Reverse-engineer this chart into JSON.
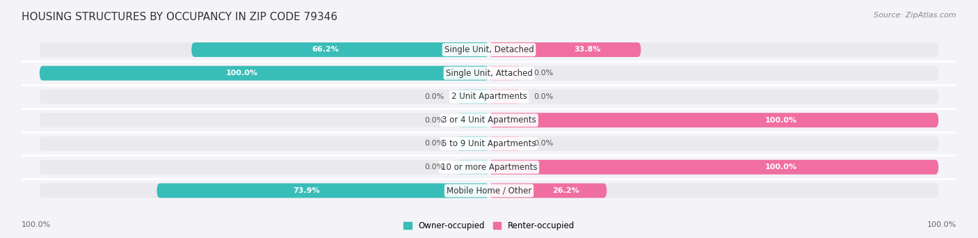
{
  "title": "HOUSING STRUCTURES BY OCCUPANCY IN ZIP CODE 79346",
  "source": "Source: ZipAtlas.com",
  "categories": [
    "Single Unit, Detached",
    "Single Unit, Attached",
    "2 Unit Apartments",
    "3 or 4 Unit Apartments",
    "5 to 9 Unit Apartments",
    "10 or more Apartments",
    "Mobile Home / Other"
  ],
  "owner_pct": [
    66.2,
    100.0,
    0.0,
    0.0,
    0.0,
    0.0,
    73.9
  ],
  "renter_pct": [
    33.8,
    0.0,
    0.0,
    100.0,
    0.0,
    100.0,
    26.2
  ],
  "owner_color": "#39BDB8",
  "renter_color": "#F06EA0",
  "owner_color_light": "#A8DFE0",
  "renter_color_light": "#F8BDD6",
  "bar_bg_color": "#E9E9EE",
  "bg_color": "#F4F4F8",
  "row_sep_color": "#FFFFFF",
  "bar_height": 0.62,
  "label_fontsize": 8.5,
  "value_fontsize": 8.0,
  "title_fontsize": 11,
  "source_fontsize": 8,
  "legend_fontsize": 8.5,
  "axis_tick_fontsize": 8,
  "axis_label_left": "100.0%",
  "axis_label_right": "100.0%"
}
